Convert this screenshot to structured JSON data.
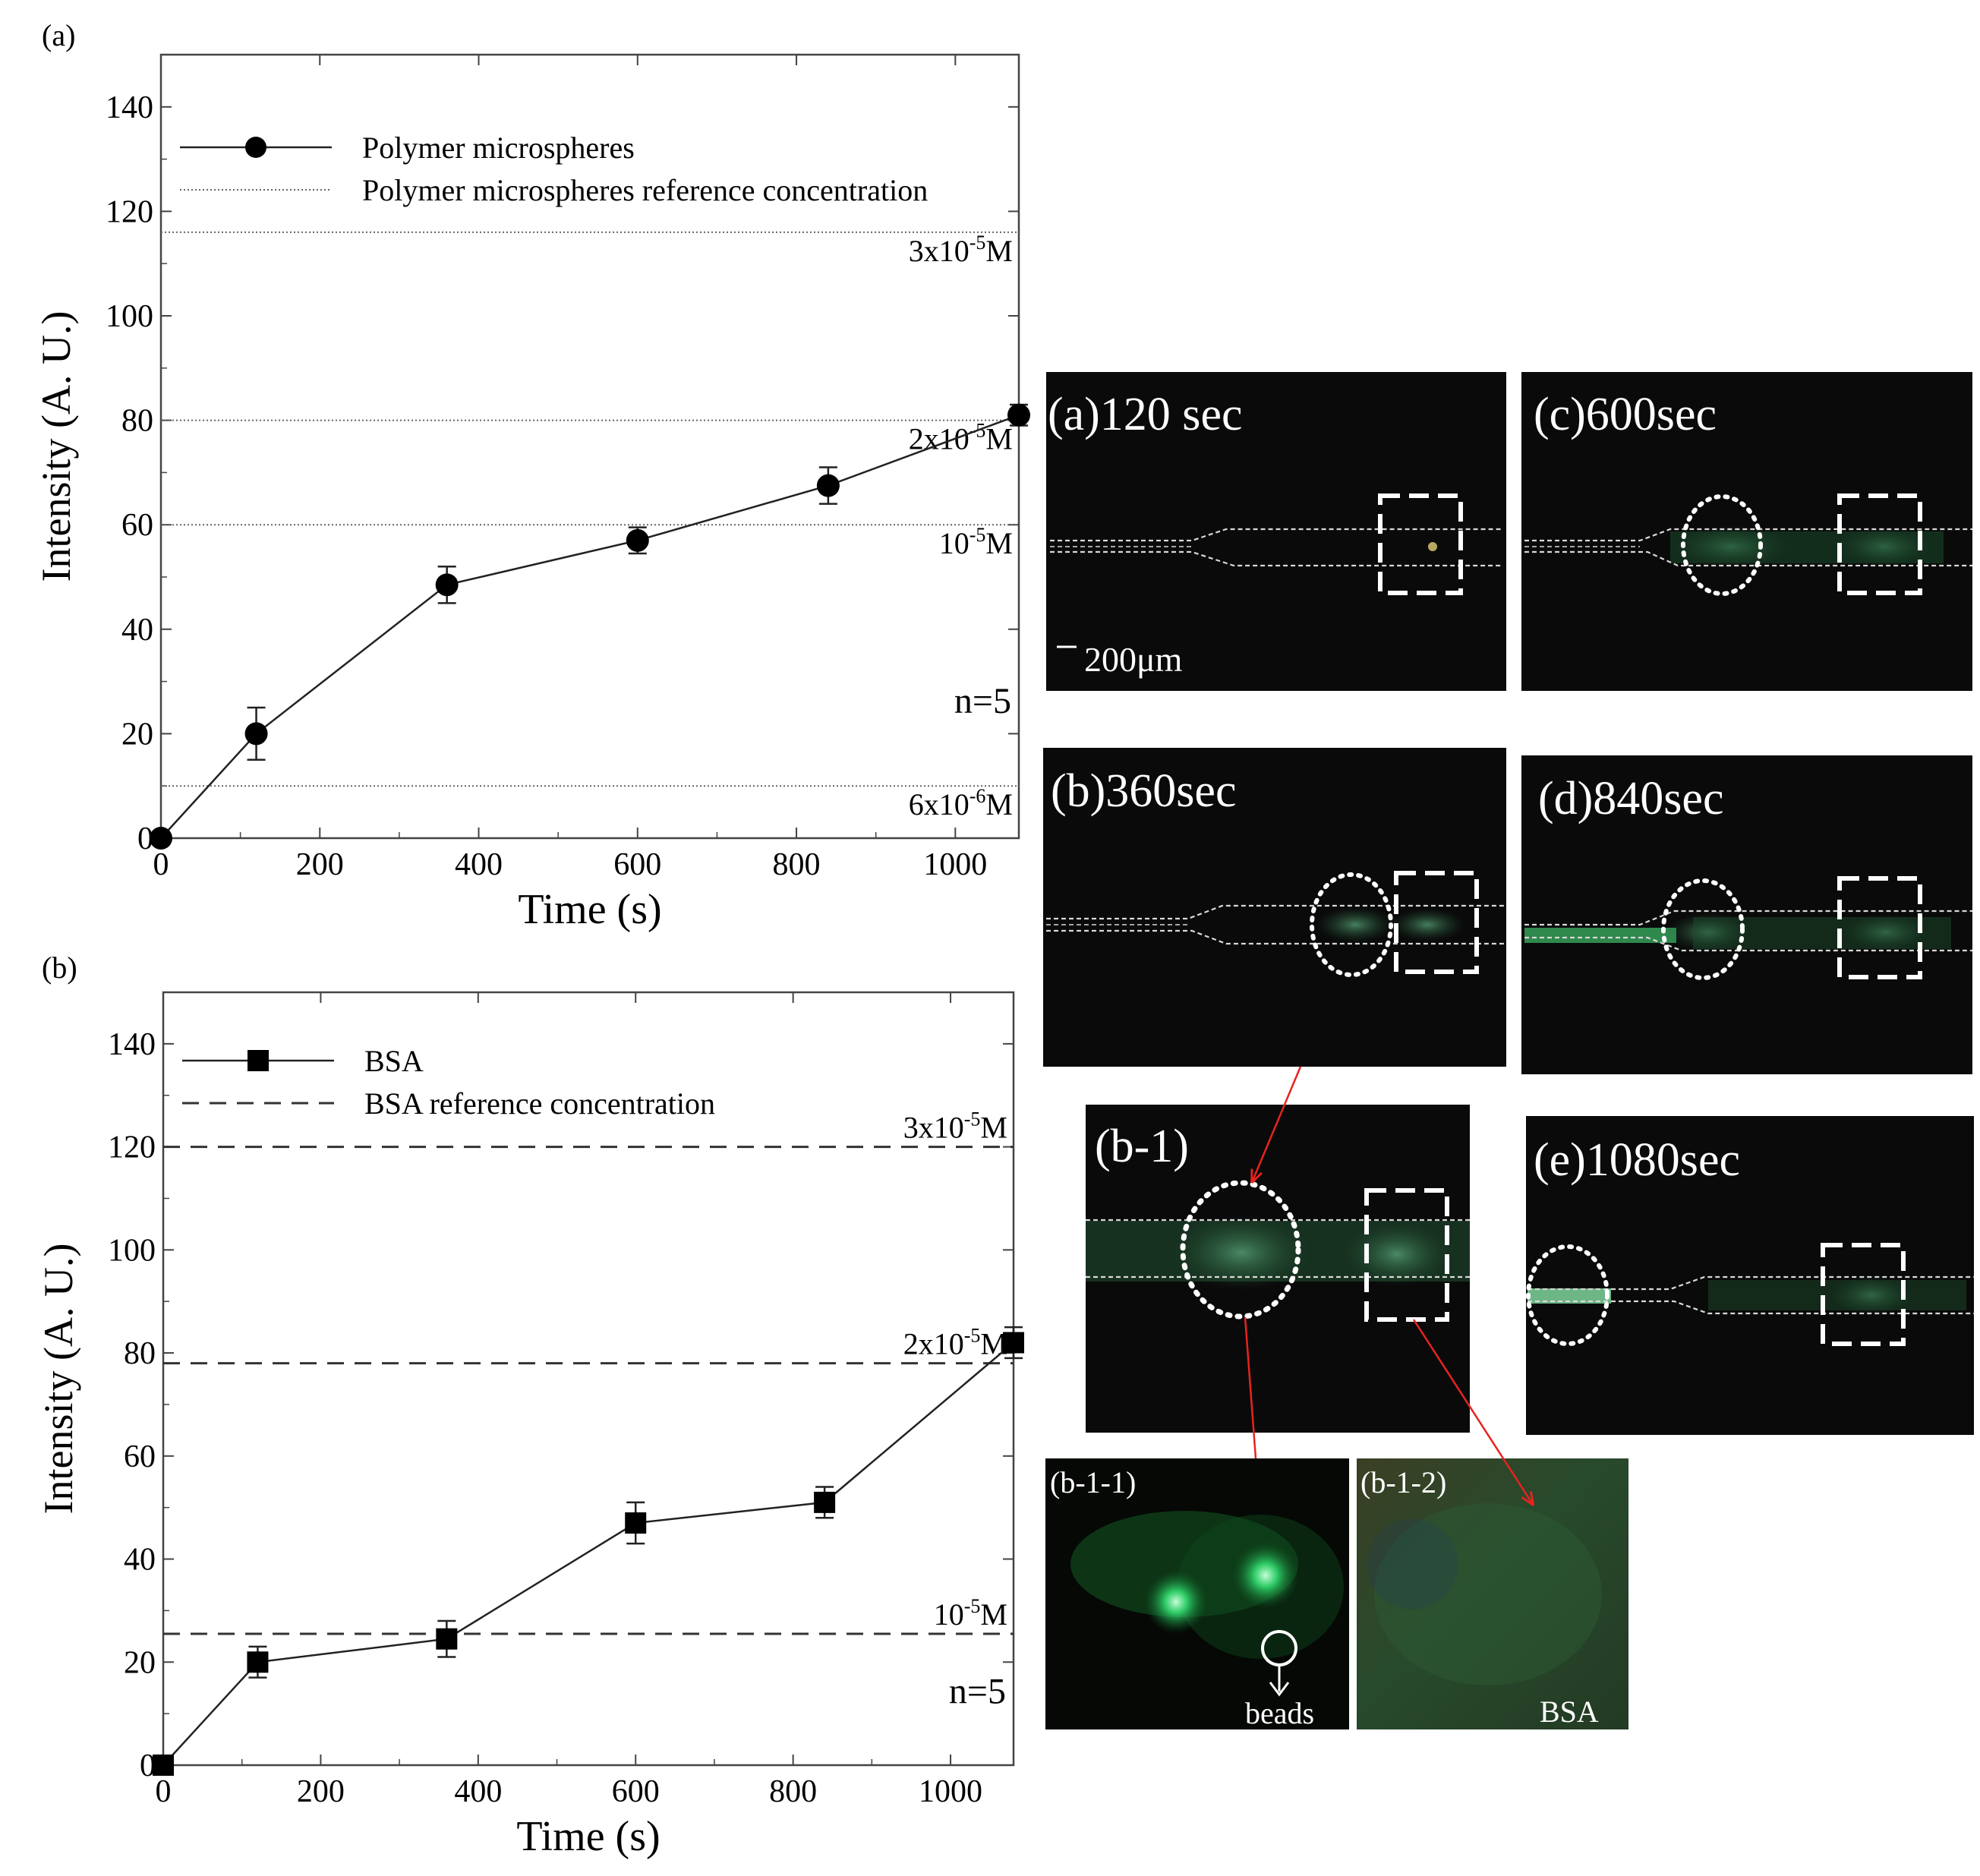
{
  "charts_panel_labels": [
    "(a)",
    "(b)"
  ],
  "chart_data": [
    {
      "type": "line",
      "panel": "(a)",
      "xlabel": "Time (s)",
      "ylabel": "Intensity (A. U.)",
      "xlim": [
        0,
        1080
      ],
      "ylim": [
        0,
        150
      ],
      "xticks": [
        0,
        200,
        400,
        600,
        800,
        1000
      ],
      "yticks": [
        0,
        20,
        40,
        60,
        80,
        100,
        120,
        140
      ],
      "series": [
        {
          "name": "Polymer microspheres",
          "marker": "circle",
          "x": [
            0,
            120,
            360,
            600,
            840,
            1080
          ],
          "y": [
            0,
            20,
            48.5,
            57,
            67.5,
            81
          ],
          "err": [
            0,
            5,
            3.5,
            2.5,
            3.5,
            2
          ]
        }
      ],
      "reference": {
        "name": "Polymer microspheres reference concentration",
        "style": "dotted",
        "lines": [
          {
            "label": "3x10⁻⁵M",
            "y": 116
          },
          {
            "label": "2x10⁻⁵M",
            "y": 80
          },
          {
            "label": "10⁻⁵M",
            "y": 60
          },
          {
            "label": "6x10⁻⁶M",
            "y": 10
          }
        ]
      },
      "annotation": "n=5",
      "grid": false,
      "legend": "top-left"
    },
    {
      "type": "line",
      "panel": "(b)",
      "xlabel": "Time (s)",
      "ylabel": "Intensity (A. U.)",
      "xlim": [
        0,
        1080
      ],
      "ylim": [
        0,
        150
      ],
      "xticks": [
        0,
        200,
        400,
        600,
        800,
        1000
      ],
      "yticks": [
        0,
        20,
        40,
        60,
        80,
        100,
        120,
        140
      ],
      "series": [
        {
          "name": "BSA",
          "marker": "square",
          "x": [
            0,
            120,
            360,
            600,
            840,
            1080
          ],
          "y": [
            0,
            20,
            24.5,
            47,
            51,
            82
          ],
          "err": [
            0,
            3,
            3.5,
            4,
            3,
            3
          ]
        }
      ],
      "reference": {
        "name": "BSA reference concentration",
        "style": "dashed",
        "lines": [
          {
            "label": "3x10⁻⁵M",
            "y": 120
          },
          {
            "label": "2x10⁻⁵M",
            "y": 78
          },
          {
            "label": "10⁻⁵M",
            "y": 25.5
          }
        ]
      },
      "annotation": "n=5",
      "grid": false,
      "legend": "top-left"
    }
  ],
  "micrographs": {
    "a": "(a)120 sec",
    "c": "(c)600sec",
    "b": "(b)360sec",
    "d": "(d)840sec",
    "b1": "(b-1)",
    "e": "(e)1080sec",
    "b11": "(b-1-1)",
    "b12": "(b-1-2)",
    "scale": "200μm",
    "beads": "beads",
    "bsa": "BSA"
  },
  "colors": {
    "arrow": "#e8231e",
    "fluorescence": "#2fae5a",
    "background": "#0a0a0a"
  }
}
